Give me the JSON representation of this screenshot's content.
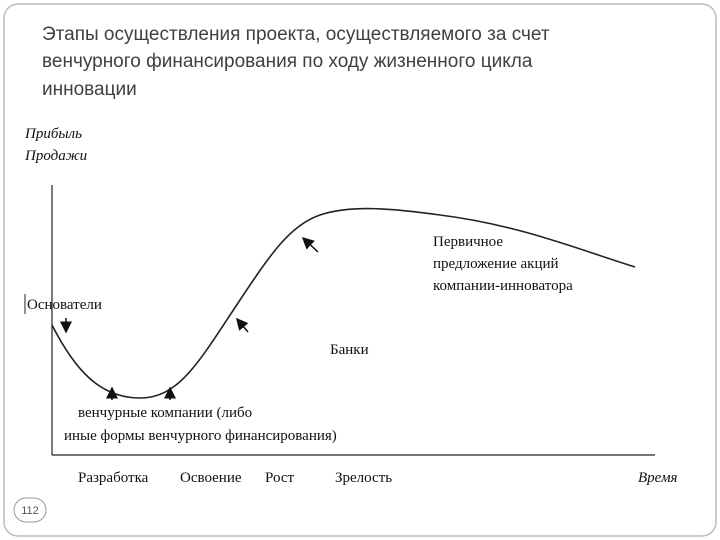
{
  "header": {
    "title": [
      "Этапы осуществления проекта, осуществляемого за счет",
      "венчурного финансирования по ходу жизненного цикла",
      "инновации"
    ]
  },
  "diagram": {
    "y_axis_label": [
      "Прибыль",
      "Продажи"
    ],
    "x_axis_label": "Время",
    "stages": [
      "Разработка",
      "Освоение",
      "Рост",
      "Зрелость"
    ],
    "annotations": {
      "founders": "Основатели",
      "venture": [
        "венчурные компании (либо",
        "иные формы венчурного финансирования)"
      ],
      "banks": "Банки",
      "ipo": [
        "Первичное",
        "предложение акций",
        "компании-инноватора"
      ]
    }
  },
  "footer": {
    "page_number": "112"
  }
}
